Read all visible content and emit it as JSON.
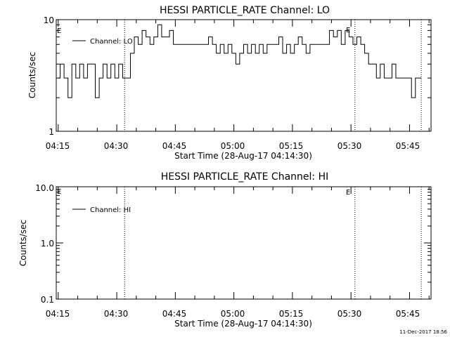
{
  "footer": {
    "date_stamp": "11-Dec-2017 18:56"
  },
  "chart_data": [
    {
      "type": "line",
      "title": "HESSI PARTICLE_RATE Channel: LO",
      "xlabel": "Start Time (28-Aug-17 04:14:30)",
      "ylabel": "Counts/sec",
      "x_ticks": [
        "04:15",
        "04:30",
        "04:45",
        "05:00",
        "05:15",
        "05:30",
        "05:45"
      ],
      "y_scale": "log",
      "ylim": [
        1,
        10
      ],
      "y_ticks": [
        "1",
        "10"
      ],
      "legend": {
        "position": "top-left",
        "entries": [
          "Channel: LO"
        ]
      },
      "event_markers": [
        {
          "time": "04:32",
          "label": ""
        },
        {
          "time": "05:31",
          "label": "E"
        },
        {
          "time": "05:48",
          "label": ""
        }
      ],
      "start_marker_label": "E",
      "series": [
        {
          "name": "Channel: LO",
          "x": [
            "04:15",
            "04:16",
            "04:17",
            "04:18",
            "04:19",
            "04:20",
            "04:21",
            "04:22",
            "04:23",
            "04:24",
            "04:25",
            "04:26",
            "04:27",
            "04:28",
            "04:29",
            "04:30",
            "04:31",
            "04:32",
            "04:33",
            "04:34",
            "04:35",
            "04:36",
            "04:37",
            "04:38",
            "04:39",
            "04:40",
            "04:41",
            "04:42",
            "04:43",
            "04:44",
            "04:45",
            "04:46",
            "04:47",
            "04:48",
            "04:49",
            "04:50",
            "04:51",
            "04:52",
            "04:53",
            "04:54",
            "04:55",
            "04:56",
            "04:57",
            "04:58",
            "04:59",
            "05:00",
            "05:01",
            "05:02",
            "05:03",
            "05:04",
            "05:05",
            "05:06",
            "05:07",
            "05:08",
            "05:09",
            "05:10",
            "05:11",
            "05:12",
            "05:13",
            "05:14",
            "05:15",
            "05:16",
            "05:17",
            "05:18",
            "05:19",
            "05:20",
            "05:21",
            "05:22",
            "05:23",
            "05:24",
            "05:25",
            "05:26",
            "05:27",
            "05:28",
            "05:29",
            "05:30",
            "05:31",
            "05:32",
            "05:33",
            "05:34",
            "05:35",
            "05:36",
            "05:37",
            "05:38",
            "05:39",
            "05:40",
            "05:41",
            "05:42",
            "05:43",
            "05:44",
            "05:45",
            "05:46",
            "05:47",
            "05:48"
          ],
          "values": [
            3,
            4,
            3,
            2,
            4,
            3,
            4,
            3,
            4,
            4,
            2,
            3,
            4,
            3,
            4,
            3,
            4,
            3,
            3,
            5,
            7,
            6,
            8,
            7,
            6,
            7,
            9,
            7,
            7,
            8,
            6,
            6,
            6,
            6,
            6,
            6,
            6,
            6,
            6,
            7,
            6,
            5,
            6,
            5,
            6,
            5,
            4,
            5,
            6,
            5,
            6,
            5,
            6,
            5,
            6,
            6,
            6,
            7,
            5,
            6,
            5,
            6,
            7,
            6,
            5,
            6,
            6,
            6,
            6,
            6,
            8,
            7,
            8,
            6,
            8,
            7,
            6,
            7,
            6,
            5,
            4,
            4,
            3,
            4,
            3,
            3,
            4,
            3,
            3,
            3,
            3,
            2,
            3,
            3
          ]
        }
      ]
    },
    {
      "type": "line",
      "title": "HESSI PARTICLE_RATE Channel: HI",
      "xlabel": "Start Time (28-Aug-17 04:14:30)",
      "ylabel": "Counts/sec",
      "x_ticks": [
        "04:15",
        "04:30",
        "04:45",
        "05:00",
        "05:15",
        "05:30",
        "05:45"
      ],
      "y_scale": "log",
      "ylim": [
        0.1,
        10
      ],
      "y_ticks": [
        "0.1",
        "1.0",
        "10.0"
      ],
      "legend": {
        "position": "top-left",
        "entries": [
          "Channel: HI"
        ]
      },
      "event_markers": [
        {
          "time": "04:32",
          "label": ""
        },
        {
          "time": "05:31",
          "label": "E"
        },
        {
          "time": "05:48",
          "label": ""
        }
      ],
      "start_marker_label": "E",
      "series": [
        {
          "name": "Channel: HI",
          "x": [],
          "values": []
        }
      ]
    }
  ]
}
